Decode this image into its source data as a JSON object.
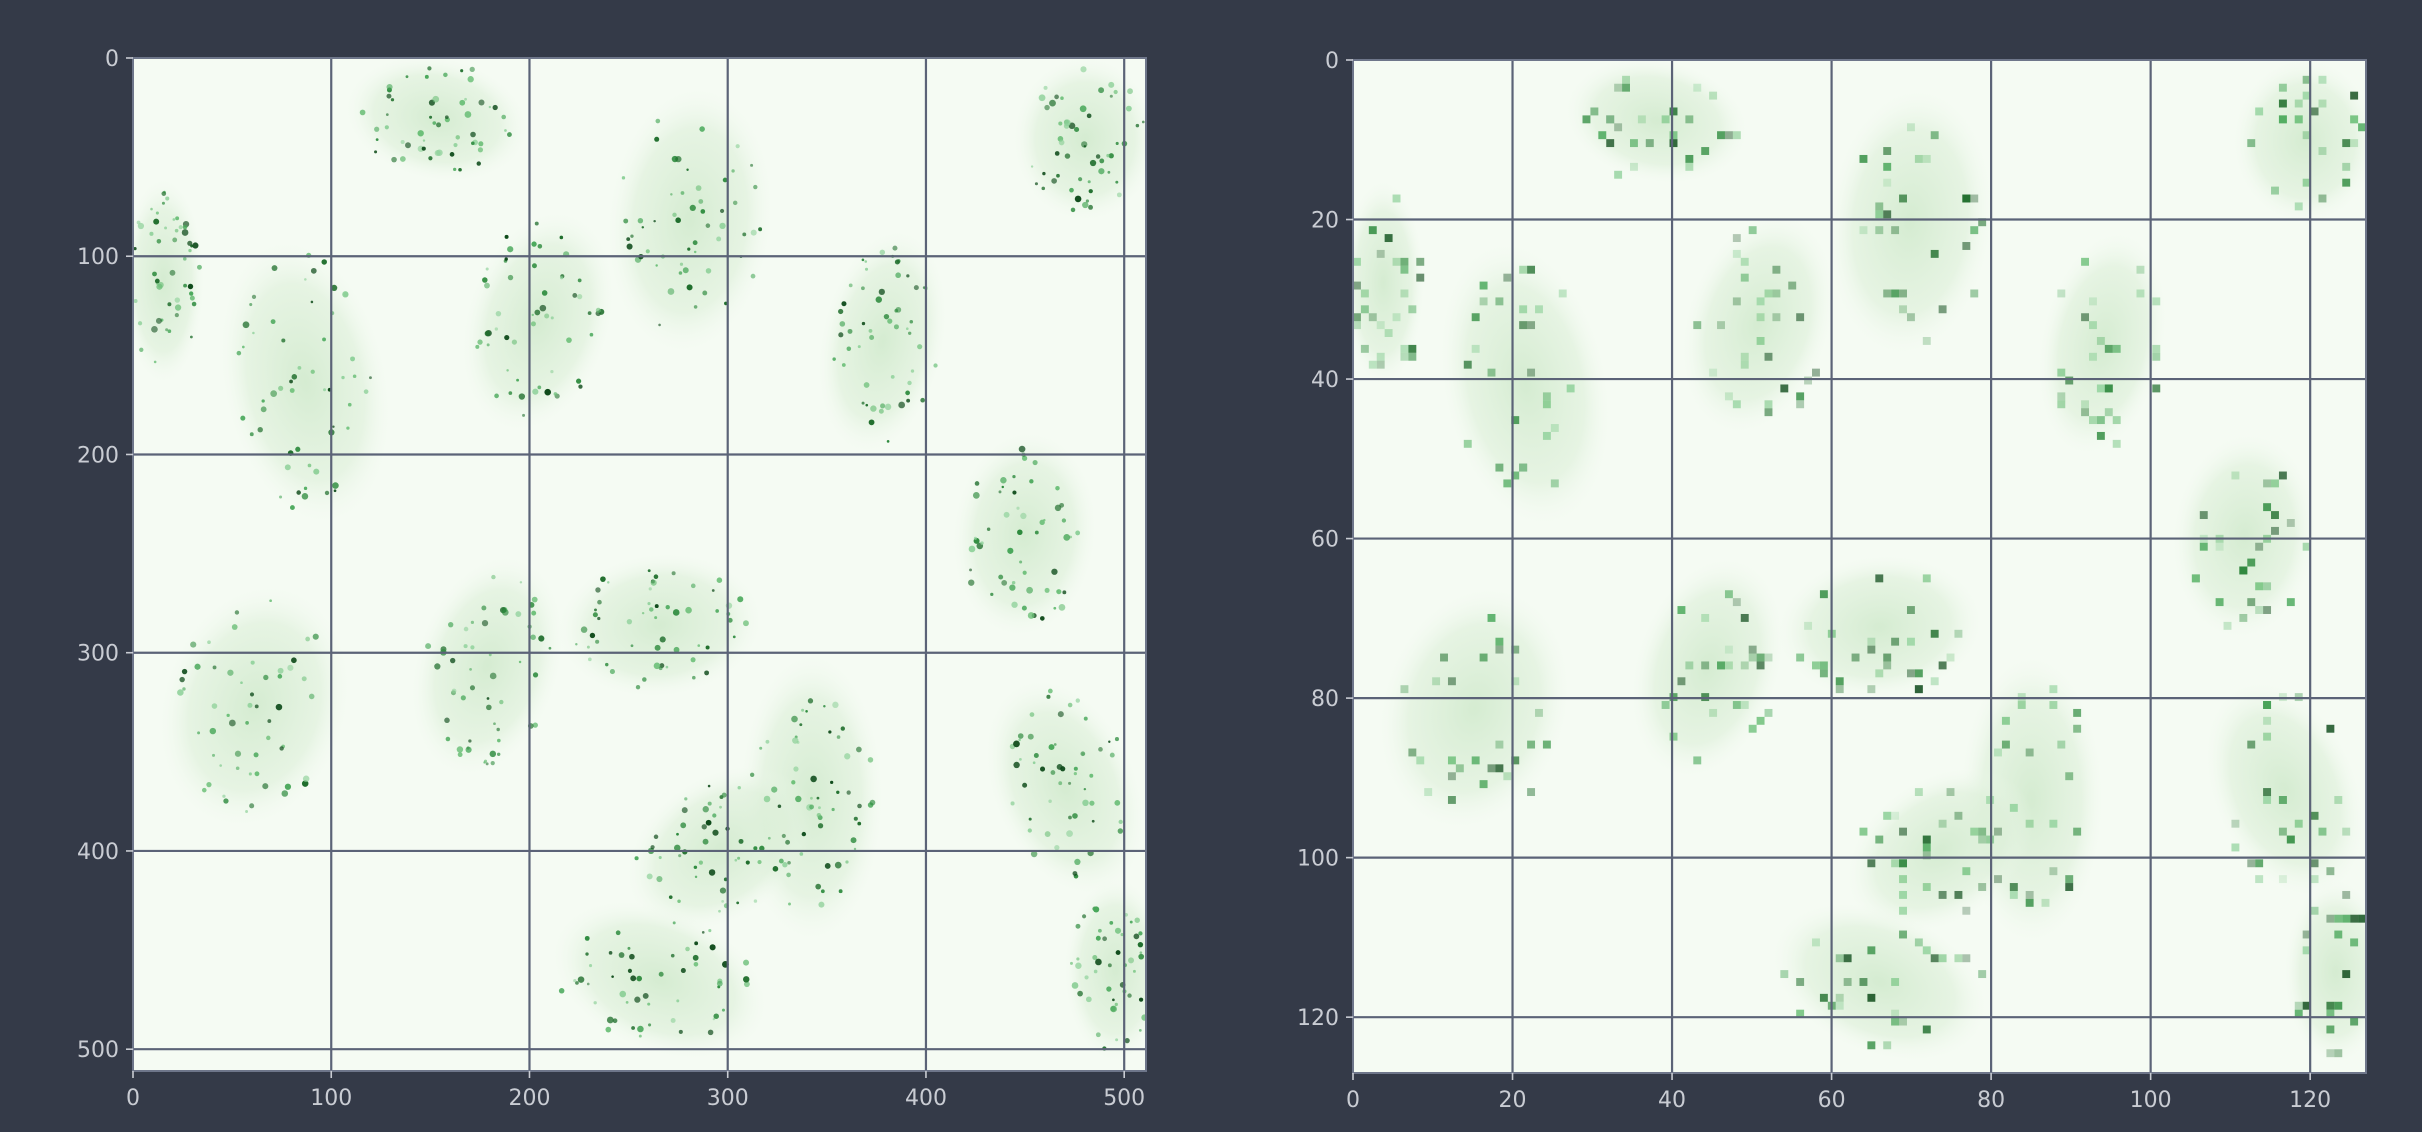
{
  "colors": {
    "background": "#343a48",
    "grid": "#5b6377",
    "tick_text": "#c9ccd3",
    "colormap": "Greens"
  },
  "chart_data": [
    {
      "type": "heatmap",
      "title": "",
      "xlabel": "",
      "ylabel": "",
      "xlim": [
        0,
        511
      ],
      "ylim": [
        511,
        0
      ],
      "grid": true,
      "x_ticks": [
        0,
        100,
        200,
        300,
        400,
        500
      ],
      "y_ticks": [
        0,
        100,
        200,
        300,
        400,
        500
      ],
      "x_tick_labels": [
        "0",
        "100",
        "200",
        "300",
        "400",
        "500"
      ],
      "y_tick_labels": [
        "0",
        "100",
        "200",
        "300",
        "400",
        "500"
      ],
      "image_size": [
        512,
        512
      ]
    },
    {
      "type": "heatmap",
      "title": "",
      "xlabel": "",
      "ylabel": "",
      "xlim": [
        0,
        127
      ],
      "ylim": [
        127,
        0
      ],
      "grid": true,
      "x_ticks": [
        0,
        20,
        40,
        60,
        80,
        100,
        120
      ],
      "y_ticks": [
        0,
        20,
        40,
        60,
        80,
        100,
        120
      ],
      "x_tick_labels": [
        "0",
        "20",
        "40",
        "60",
        "80",
        "100",
        "120"
      ],
      "y_tick_labels": [
        "0",
        "20",
        "40",
        "60",
        "80",
        "100",
        "120"
      ],
      "image_size": [
        128,
        128
      ]
    }
  ]
}
